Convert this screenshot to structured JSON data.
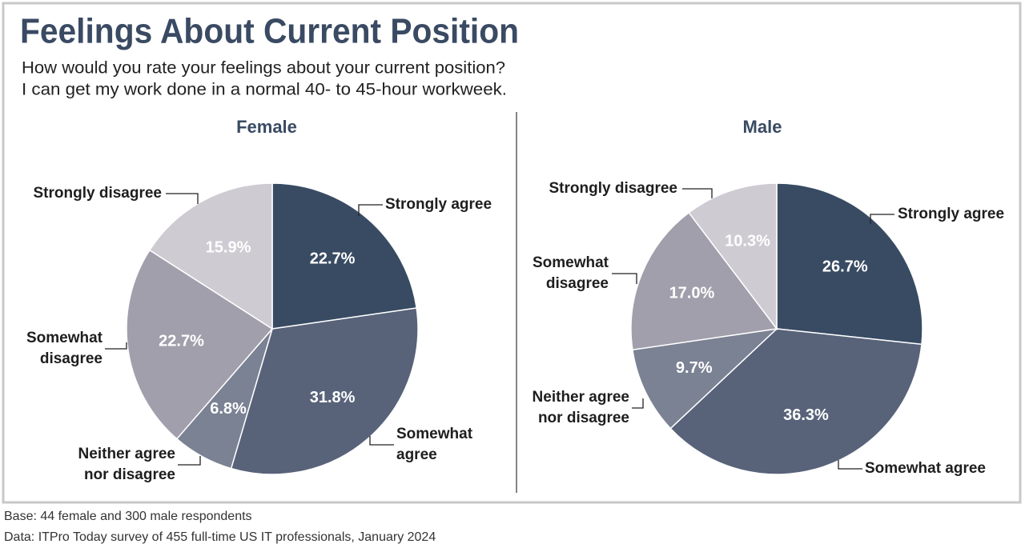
{
  "title": "Feelings About Current Position",
  "subtitle": [
    "How would you rate your feelings about your current position?",
    "I can get my work done in a normal 40- to 45-hour workweek."
  ],
  "notes": [
    "Base: 44 female and 300 male respondents",
    "Data: ITPro Today survey of 455 full-time US IT professionals, January 2024"
  ],
  "chart_data": [
    {
      "type": "pie",
      "title": "Female",
      "categories": [
        "Strongly agree",
        "Somewhat agree",
        "Neither agree nor disagree",
        "Somewhat disagree",
        "Strongly disagree"
      ],
      "values": [
        22.7,
        31.8,
        6.8,
        22.7,
        15.9
      ],
      "value_labels": [
        "22.7%",
        "31.8%",
        "6.8%",
        "22.7%",
        "15.9%"
      ],
      "colors": [
        "#384b63",
        "#58637a",
        "#7a8293",
        "#a29fac",
        "#cfcbd3"
      ]
    },
    {
      "type": "pie",
      "title": "Male",
      "categories": [
        "Strongly agree",
        "Somewhat agree",
        "Neither agree nor disagree",
        "Somewhat disagree",
        "Strongly disagree"
      ],
      "values": [
        26.7,
        36.3,
        9.7,
        17.0,
        10.3
      ],
      "value_labels": [
        "26.7%",
        "36.3%",
        "9.7%",
        "17.0%",
        "10.3%"
      ],
      "colors": [
        "#384b63",
        "#58637a",
        "#7a8293",
        "#a29fac",
        "#cfcbd3"
      ]
    }
  ]
}
